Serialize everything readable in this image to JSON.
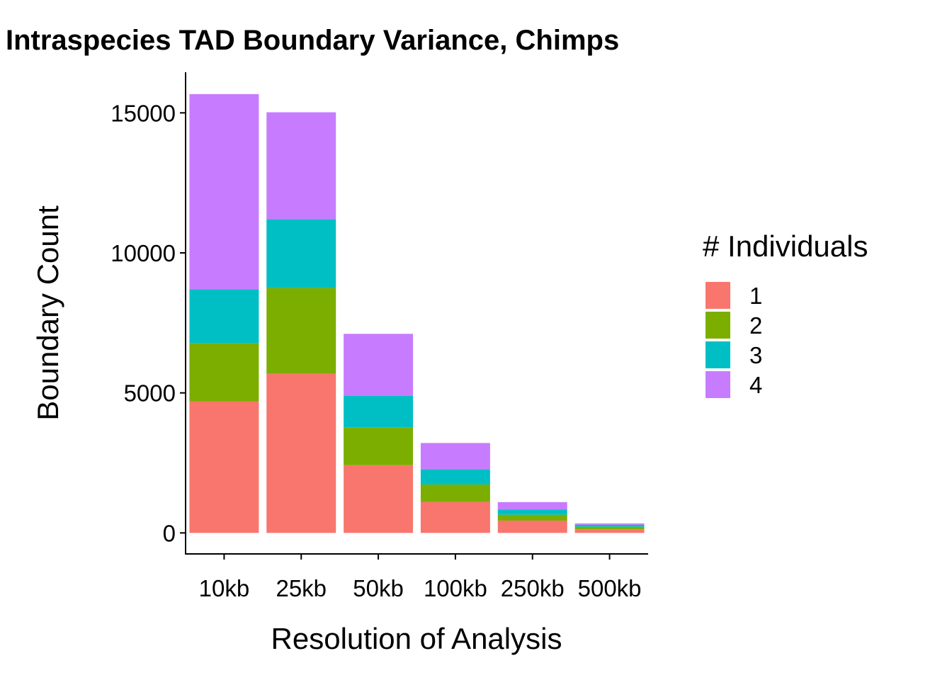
{
  "chart_data": {
    "type": "bar",
    "stacked": true,
    "title": "Intraspecies TAD Boundary Variance, Chimps",
    "xlabel": "Resolution of Analysis",
    "ylabel": "Boundary Count",
    "categories": [
      "10kb",
      "25kb",
      "50kb",
      "100kb",
      "250kb",
      "500kb"
    ],
    "series": [
      {
        "name": "1",
        "color": "#F8766D",
        "values": [
          4700,
          5680,
          2420,
          1110,
          440,
          130
        ]
      },
      {
        "name": "2",
        "color": "#7CAE00",
        "values": [
          2080,
          3070,
          1340,
          620,
          210,
          90
        ]
      },
      {
        "name": "3",
        "color": "#00BFC4",
        "values": [
          1920,
          2450,
          1130,
          540,
          190,
          70
        ]
      },
      {
        "name": "4",
        "color": "#C77CFF",
        "values": [
          6970,
          3820,
          2220,
          940,
          260,
          50
        ]
      }
    ],
    "ylim": [
      -750,
      16450
    ],
    "yticks": [
      0,
      5000,
      10000,
      15000
    ],
    "ytick_labels": [
      "0",
      "5000",
      "10000",
      "15000"
    ],
    "legend": {
      "title": "# Individuals",
      "placement": "right"
    },
    "grid": false
  }
}
